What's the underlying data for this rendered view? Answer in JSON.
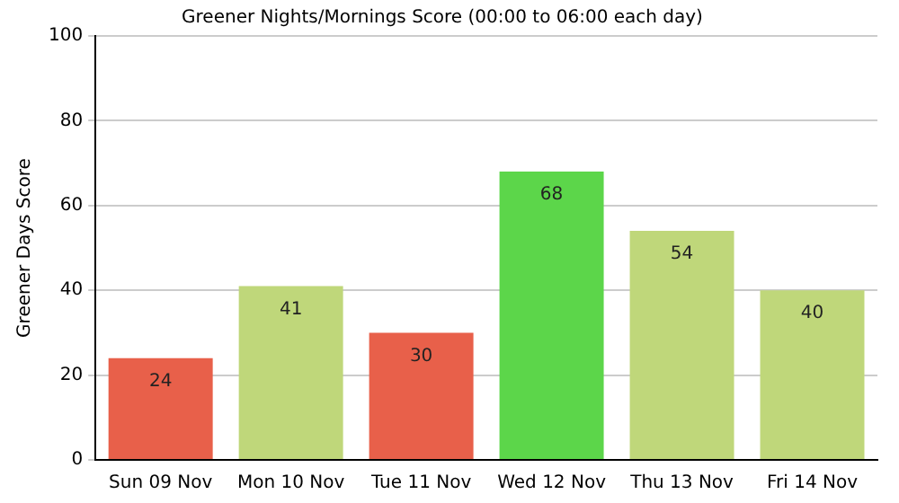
{
  "chart_data": {
    "type": "bar",
    "title": "Greener Nights/Mornings Score (00:00 to 06:00 each day)",
    "ylabel": "Greener Days Score",
    "categories": [
      "Sun 09 Nov",
      "Mon 10 Nov",
      "Tue 11 Nov",
      "Wed 12 Nov",
      "Thu 13 Nov",
      "Fri 14 Nov"
    ],
    "values": [
      24,
      41,
      30,
      68,
      54,
      40
    ],
    "colors": [
      "#e8604a",
      "#bfd77a",
      "#e8604a",
      "#5cd64a",
      "#bfd77a",
      "#bfd77a"
    ],
    "ylim": [
      0,
      100
    ],
    "yticks": [
      0,
      20,
      40,
      60,
      80,
      100
    ],
    "grid": "y",
    "data_labels": true,
    "legend": false
  }
}
